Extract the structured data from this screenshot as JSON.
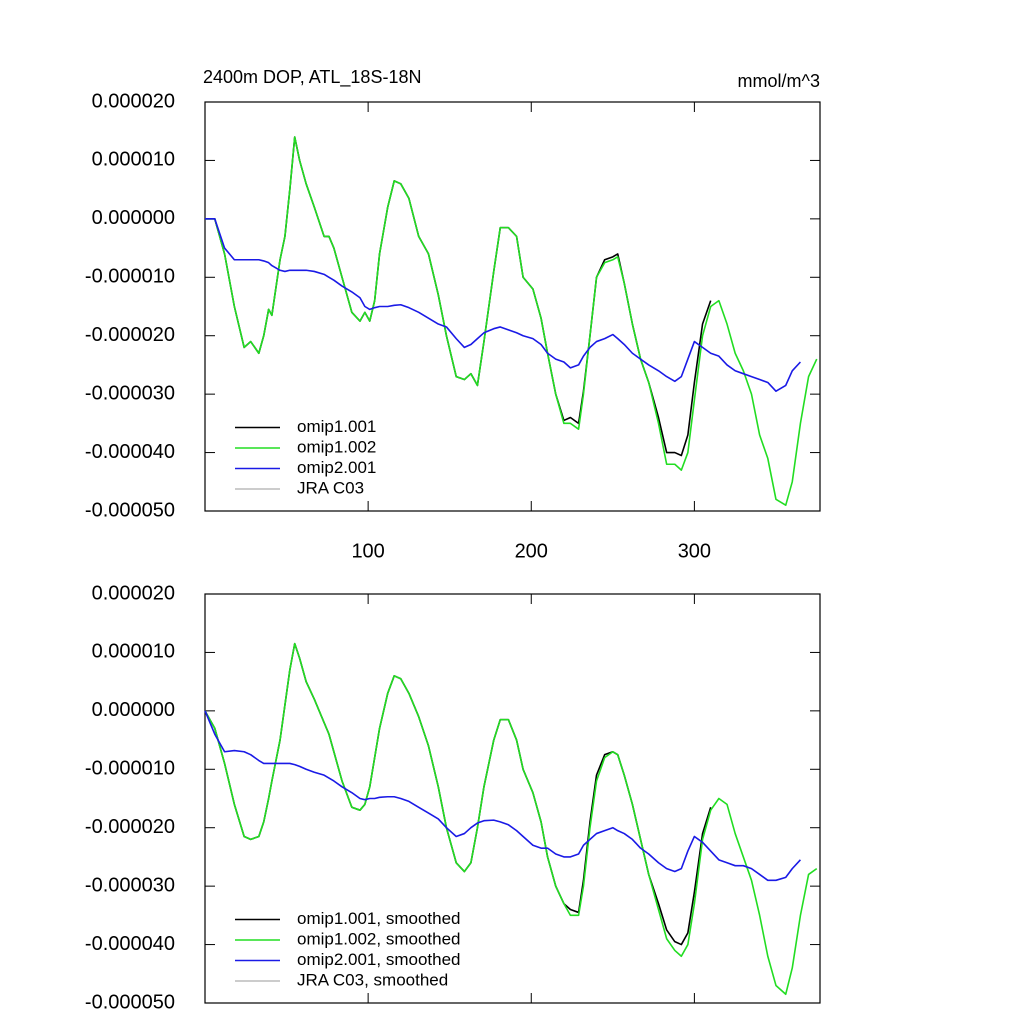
{
  "chart_data": [
    {
      "type": "line",
      "title": "2400m DOP, ATL_18S-18N",
      "y_unit": "mmol/m^3",
      "x": [
        0,
        6,
        12,
        18,
        24,
        28,
        33,
        36,
        39,
        41,
        46,
        49,
        52,
        55,
        58,
        62,
        67,
        73,
        76,
        79,
        84,
        90,
        95,
        98,
        101,
        104,
        107,
        112,
        116,
        120,
        125,
        131,
        137,
        143,
        148,
        154,
        159,
        163,
        167,
        171,
        177,
        181,
        186,
        191,
        195,
        201,
        206,
        210,
        215,
        220,
        224,
        229,
        232,
        236,
        240,
        245,
        250,
        253,
        257,
        262,
        267,
        272,
        278,
        283,
        288,
        292,
        296,
        300,
        305,
        310,
        315,
        320,
        325,
        330,
        335,
        340,
        345,
        350,
        356,
        360,
        365,
        370,
        375
      ],
      "xlim": [
        0,
        377
      ],
      "xticks": [
        100,
        200,
        300
      ],
      "ylim": [
        -5e-05,
        2e-05
      ],
      "yticks": [
        {
          "value": 2e-05,
          "label": "0.000020"
        },
        {
          "value": 1e-05,
          "label": "0.000010"
        },
        {
          "value": 0,
          "label": "0.000000"
        },
        {
          "value": -1e-05,
          "label": "-0.000010"
        },
        {
          "value": -2e-05,
          "label": "-0.000020"
        },
        {
          "value": -3e-05,
          "label": "-0.000030"
        },
        {
          "value": -4e-05,
          "label": "-0.000040"
        },
        {
          "value": -5e-05,
          "label": "-0.000050"
        }
      ],
      "legend": "lower left",
      "series": [
        {
          "name": "omip1.001",
          "color": "#000000",
          "values": [
            0,
            0,
            -6e-06,
            -1.5e-05,
            -2.2e-05,
            -2.1e-05,
            -2.3e-05,
            -2e-05,
            -1.55e-05,
            -1.65e-05,
            -7e-06,
            -3e-06,
            5e-06,
            1.4e-05,
            1e-05,
            6e-06,
            2e-06,
            -3e-06,
            -3e-06,
            -5e-06,
            -1e-05,
            -1.6e-05,
            -1.75e-05,
            -1.6e-05,
            -1.75e-05,
            -1.4e-05,
            -6e-06,
            2e-06,
            6.5e-06,
            6e-06,
            3.5e-06,
            -3e-06,
            -6e-06,
            -1.3e-05,
            -2e-05,
            -2.7e-05,
            -2.75e-05,
            -2.65e-05,
            -2.85e-05,
            -2.1e-05,
            -9e-06,
            -1.5e-06,
            -1.5e-06,
            -3e-06,
            -1e-05,
            -1.2e-05,
            -1.7e-05,
            -2.3e-05,
            -3e-05,
            -3.45e-05,
            -3.4e-05,
            -3.5e-05,
            -2.95e-05,
            -2e-05,
            -1e-05,
            -7e-06,
            -6.5e-06,
            -6e-06,
            -1.1e-05,
            -1.8e-05,
            -2.4e-05,
            -2.8e-05,
            -3.4e-05,
            -4e-05,
            -4e-05,
            -4.05e-05,
            -3.7e-05,
            -2.8e-05,
            -1.8e-05,
            -1.4e-05,
            null,
            null,
            null,
            null,
            null,
            null,
            null,
            null,
            null,
            null,
            null,
            null,
            null
          ]
        },
        {
          "name": "omip1.002",
          "color": "#22dd22",
          "values": [
            0,
            0,
            -6e-06,
            -1.5e-05,
            -2.2e-05,
            -2.1e-05,
            -2.3e-05,
            -2e-05,
            -1.55e-05,
            -1.65e-05,
            -7e-06,
            -3e-06,
            5e-06,
            1.4e-05,
            1e-05,
            6e-06,
            2e-06,
            -3e-06,
            -3e-06,
            -5e-06,
            -1e-05,
            -1.6e-05,
            -1.75e-05,
            -1.6e-05,
            -1.75e-05,
            -1.4e-05,
            -6e-06,
            2e-06,
            6.5e-06,
            6e-06,
            3.5e-06,
            -3e-06,
            -6e-06,
            -1.3e-05,
            -2e-05,
            -2.7e-05,
            -2.75e-05,
            -2.65e-05,
            -2.85e-05,
            -2.1e-05,
            -9e-06,
            -1.5e-06,
            -1.5e-06,
            -3e-06,
            -1e-05,
            -1.2e-05,
            -1.7e-05,
            -2.3e-05,
            -3e-05,
            -3.5e-05,
            -3.5e-05,
            -3.6e-05,
            -3e-05,
            -2e-05,
            -1e-05,
            -7.5e-06,
            -7e-06,
            -6.5e-06,
            -1.1e-05,
            -1.8e-05,
            -2.4e-05,
            -2.8e-05,
            -3.5e-05,
            -4.2e-05,
            -4.2e-05,
            -4.3e-05,
            -4e-05,
            -3.1e-05,
            -2e-05,
            -1.5e-05,
            -1.4e-05,
            -1.8e-05,
            -2.3e-05,
            -2.6e-05,
            -3e-05,
            -3.7e-05,
            -4.1e-05,
            -4.8e-05,
            -4.9e-05,
            -4.5e-05,
            -3.5e-05,
            -2.7e-05,
            -2.4e-05
          ]
        },
        {
          "name": "omip2.001",
          "color": "#1a1ae6",
          "values": [
            0,
            0,
            -5e-06,
            -7e-06,
            -7e-06,
            -7e-06,
            -7e-06,
            -7.2e-06,
            -7.5e-06,
            -8e-06,
            -8.8e-06,
            -9e-06,
            -8.8e-06,
            -8.8e-06,
            -8.8e-06,
            -8.8e-06,
            -9e-06,
            -9.5e-06,
            -1e-05,
            -1.05e-05,
            -1.15e-05,
            -1.25e-05,
            -1.35e-05,
            -1.5e-05,
            -1.55e-05,
            -1.52e-05,
            -1.5e-05,
            -1.5e-05,
            -1.48e-05,
            -1.47e-05,
            -1.52e-05,
            -1.6e-05,
            -1.7e-05,
            -1.8e-05,
            -1.85e-05,
            -2.05e-05,
            -2.2e-05,
            -2.15e-05,
            -2.05e-05,
            -1.95e-05,
            -1.88e-05,
            -1.85e-05,
            -1.9e-05,
            -1.95e-05,
            -2e-05,
            -2.05e-05,
            -2.15e-05,
            -2.3e-05,
            -2.4e-05,
            -2.45e-05,
            -2.55e-05,
            -2.5e-05,
            -2.35e-05,
            -2.2e-05,
            -2.1e-05,
            -2.05e-05,
            -1.98e-05,
            -2.05e-05,
            -2.15e-05,
            -2.3e-05,
            -2.4e-05,
            -2.5e-05,
            -2.6e-05,
            -2.7e-05,
            -2.78e-05,
            -2.7e-05,
            -2.4e-05,
            -2.1e-05,
            -2.2e-05,
            -2.3e-05,
            -2.35e-05,
            -2.5e-05,
            -2.6e-05,
            -2.65e-05,
            -2.7e-05,
            -2.75e-05,
            -2.8e-05,
            -2.95e-05,
            -2.85e-05,
            -2.6e-05,
            -2.45e-05,
            null,
            null
          ]
        },
        {
          "name": "JRA C03",
          "color": "#bbbbbb",
          "values": [
            null,
            null,
            null,
            null,
            null,
            null,
            null,
            null,
            null,
            null,
            null,
            null,
            null,
            null,
            null,
            null,
            null,
            null,
            null,
            null,
            null,
            null,
            null,
            null,
            null,
            null,
            null,
            null,
            null,
            null,
            null,
            null,
            null,
            null,
            null,
            null,
            null,
            null,
            null,
            null,
            null,
            null,
            null,
            null,
            null,
            null,
            null,
            null,
            null,
            null,
            null,
            null,
            null,
            null,
            null,
            null,
            null,
            null,
            null,
            null,
            null,
            null,
            null,
            null,
            null,
            null,
            null,
            null,
            null,
            null,
            null,
            null,
            null,
            null,
            null,
            null,
            null,
            null,
            null,
            null,
            null,
            null,
            null
          ]
        }
      ]
    },
    {
      "type": "line",
      "x": [
        0,
        6,
        12,
        18,
        24,
        28,
        33,
        36,
        39,
        41,
        46,
        49,
        52,
        55,
        58,
        62,
        67,
        73,
        76,
        79,
        84,
        90,
        95,
        98,
        101,
        104,
        107,
        112,
        116,
        120,
        125,
        131,
        137,
        143,
        148,
        154,
        159,
        163,
        167,
        171,
        177,
        181,
        186,
        191,
        195,
        201,
        206,
        210,
        215,
        220,
        224,
        229,
        232,
        236,
        240,
        245,
        250,
        253,
        257,
        262,
        267,
        272,
        278,
        283,
        288,
        292,
        296,
        300,
        305,
        310,
        315,
        320,
        325,
        330,
        335,
        340,
        345,
        350,
        356,
        360,
        365,
        370,
        375
      ],
      "xlim": [
        0,
        377
      ],
      "xticks": [
        100,
        200,
        300
      ],
      "xtick_labels": false,
      "ylim": [
        -5e-05,
        2e-05
      ],
      "yticks": [
        {
          "value": 2e-05,
          "label": "0.000020"
        },
        {
          "value": 1e-05,
          "label": "0.000010"
        },
        {
          "value": 0,
          "label": "0.000000"
        },
        {
          "value": -1e-05,
          "label": "-0.000010"
        },
        {
          "value": -2e-05,
          "label": "-0.000020"
        },
        {
          "value": -3e-05,
          "label": "-0.000030"
        },
        {
          "value": -4e-05,
          "label": "-0.000040"
        },
        {
          "value": -5e-05,
          "label": "-0.000050"
        }
      ],
      "legend": "lower left",
      "series": [
        {
          "name": "omip1.001, smoothed",
          "color": "#000000",
          "values": [
            0,
            -3e-06,
            -9e-06,
            -1.6e-05,
            -2.15e-05,
            -2.2e-05,
            -2.15e-05,
            -1.9e-05,
            -1.5e-05,
            -1.2e-05,
            -5e-06,
            1e-06,
            7e-06,
            1.15e-05,
            9e-06,
            5e-06,
            2e-06,
            -2e-06,
            -4e-06,
            -7e-06,
            -1.2e-05,
            -1.65e-05,
            -1.7e-05,
            -1.6e-05,
            -1.3e-05,
            -8e-06,
            -3e-06,
            3e-06,
            6e-06,
            5.5e-06,
            3e-06,
            -1e-06,
            -6e-06,
            -1.3e-05,
            -2e-05,
            -2.6e-05,
            -2.75e-05,
            -2.6e-05,
            -2e-05,
            -1.3e-05,
            -5e-06,
            -1.5e-06,
            -1.5e-06,
            -5e-06,
            -1e-05,
            -1.4e-05,
            -1.9e-05,
            -2.5e-05,
            -3e-05,
            -3.3e-05,
            -3.4e-05,
            -3.45e-05,
            -2.9e-05,
            -1.9e-05,
            -1.1e-05,
            -7.5e-06,
            -7e-06,
            -7.5e-06,
            -1.1e-05,
            -1.6e-05,
            -2.2e-05,
            -2.8e-05,
            -3.3e-05,
            -3.75e-05,
            -3.95e-05,
            -4e-05,
            -3.8e-05,
            -3.1e-05,
            -2.1e-05,
            -1.65e-05,
            null,
            null,
            null,
            null,
            null,
            null,
            null,
            null,
            null,
            null,
            null,
            null,
            null
          ]
        },
        {
          "name": "omip1.002, smoothed",
          "color": "#22dd22",
          "values": [
            0,
            -3e-06,
            -9e-06,
            -1.6e-05,
            -2.15e-05,
            -2.2e-05,
            -2.15e-05,
            -1.9e-05,
            -1.5e-05,
            -1.2e-05,
            -5e-06,
            1e-06,
            7e-06,
            1.15e-05,
            9e-06,
            5e-06,
            2e-06,
            -2e-06,
            -4e-06,
            -7e-06,
            -1.2e-05,
            -1.65e-05,
            -1.7e-05,
            -1.6e-05,
            -1.3e-05,
            -8e-06,
            -3e-06,
            3e-06,
            6e-06,
            5.5e-06,
            3e-06,
            -1e-06,
            -6e-06,
            -1.3e-05,
            -2e-05,
            -2.6e-05,
            -2.75e-05,
            -2.6e-05,
            -2e-05,
            -1.3e-05,
            -5e-06,
            -1.5e-06,
            -1.5e-06,
            -5e-06,
            -1e-05,
            -1.4e-05,
            -1.9e-05,
            -2.5e-05,
            -3e-05,
            -3.3e-05,
            -3.5e-05,
            -3.5e-05,
            -3e-05,
            -2e-05,
            -1.2e-05,
            -8e-06,
            -7e-06,
            -7.5e-06,
            -1.1e-05,
            -1.6e-05,
            -2.2e-05,
            -2.8e-05,
            -3.4e-05,
            -3.9e-05,
            -4.1e-05,
            -4.2e-05,
            -4e-05,
            -3.3e-05,
            -2.2e-05,
            -1.7e-05,
            -1.5e-05,
            -1.6e-05,
            -2.1e-05,
            -2.5e-05,
            -2.9e-05,
            -3.5e-05,
            -4.2e-05,
            -4.7e-05,
            -4.85e-05,
            -4.4e-05,
            -3.5e-05,
            -2.8e-05,
            -2.7e-05
          ]
        },
        {
          "name": "omip2.001, smoothed",
          "color": "#1a1ae6",
          "values": [
            0,
            -4e-06,
            -7e-06,
            -6.8e-06,
            -7e-06,
            -7.5e-06,
            -8.5e-06,
            -9e-06,
            -9e-06,
            -9e-06,
            -9e-06,
            -9e-06,
            -9e-06,
            -9.2e-06,
            -9.5e-06,
            -1e-05,
            -1.05e-05,
            -1.1e-05,
            -1.15e-05,
            -1.2e-05,
            -1.3e-05,
            -1.4e-05,
            -1.5e-05,
            -1.52e-05,
            -1.5e-05,
            -1.5e-05,
            -1.48e-05,
            -1.47e-05,
            -1.47e-05,
            -1.5e-05,
            -1.55e-05,
            -1.65e-05,
            -1.75e-05,
            -1.85e-05,
            -2e-05,
            -2.15e-05,
            -2.1e-05,
            -2e-05,
            -1.92e-05,
            -1.88e-05,
            -1.87e-05,
            -1.9e-05,
            -1.95e-05,
            -2.05e-05,
            -2.15e-05,
            -2.3e-05,
            -2.35e-05,
            -2.35e-05,
            -2.45e-05,
            -2.5e-05,
            -2.5e-05,
            -2.45e-05,
            -2.3e-05,
            -2.2e-05,
            -2.1e-05,
            -2.05e-05,
            -2e-05,
            -2.05e-05,
            -2.1e-05,
            -2.2e-05,
            -2.35e-05,
            -2.45e-05,
            -2.6e-05,
            -2.7e-05,
            -2.75e-05,
            -2.7e-05,
            -2.4e-05,
            -2.15e-05,
            -2.25e-05,
            -2.4e-05,
            -2.55e-05,
            -2.6e-05,
            -2.65e-05,
            -2.65e-05,
            -2.7e-05,
            -2.8e-05,
            -2.9e-05,
            -2.9e-05,
            -2.85e-05,
            -2.7e-05,
            -2.55e-05,
            null,
            null
          ]
        },
        {
          "name": "JRA C03, smoothed",
          "color": "#bbbbbb",
          "values": [
            null,
            null,
            null,
            null,
            null,
            null,
            null,
            null,
            null,
            null,
            null,
            null,
            null,
            null,
            null,
            null,
            null,
            null,
            null,
            null,
            null,
            null,
            null,
            null,
            null,
            null,
            null,
            null,
            null,
            null,
            null,
            null,
            null,
            null,
            null,
            null,
            null,
            null,
            null,
            null,
            null,
            null,
            null,
            null,
            null,
            null,
            null,
            null,
            null,
            null,
            null,
            null,
            null,
            null,
            null,
            null,
            null,
            null,
            null,
            null,
            null,
            null,
            null,
            null,
            null,
            null,
            null,
            null,
            null,
            null,
            null,
            null,
            null,
            null,
            null,
            null,
            null,
            null,
            null,
            null,
            null,
            null,
            null
          ]
        }
      ]
    }
  ]
}
